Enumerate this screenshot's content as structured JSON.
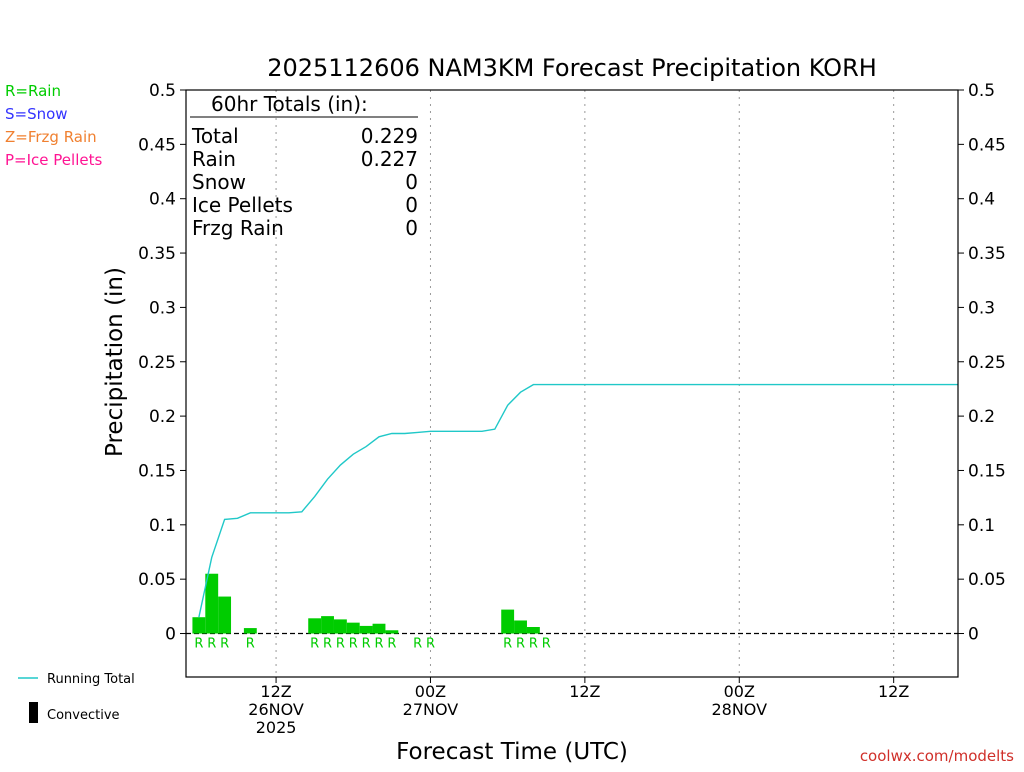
{
  "chart_data": {
    "type": "bar",
    "title": "2025112606 NAM3KM Forecast Precipitation KORH",
    "xlabel": "Forecast Time (UTC)",
    "ylabel": "Precipitation (in)",
    "ylim": [
      -0.04,
      0.5
    ],
    "x_unit": "forecast hour from 06Z 26NOV",
    "xlim": [
      -1,
      59
    ],
    "yticks": [
      {
        "v": 0.5,
        "label": "0.5"
      },
      {
        "v": 0.45,
        "label": "0.45"
      },
      {
        "v": 0.4,
        "label": "0.4"
      },
      {
        "v": 0.35,
        "label": "0.35"
      },
      {
        "v": 0.3,
        "label": "0.3"
      },
      {
        "v": 0.25,
        "label": "0.25"
      },
      {
        "v": 0.2,
        "label": "0.2"
      },
      {
        "v": 0.15,
        "label": "0.15"
      },
      {
        "v": 0.1,
        "label": "0.1"
      },
      {
        "v": 0.05,
        "label": "0.05"
      },
      {
        "v": 0,
        "label": "0"
      }
    ],
    "xticks": [
      {
        "h": 6,
        "lines": [
          "12Z",
          "26NOV",
          "2025"
        ]
      },
      {
        "h": 18,
        "lines": [
          "00Z",
          "27NOV"
        ]
      },
      {
        "h": 30,
        "lines": [
          "12Z"
        ]
      },
      {
        "h": 42,
        "lines": [
          "00Z",
          "28NOV"
        ]
      },
      {
        "h": 54,
        "lines": [
          "12Z"
        ]
      }
    ],
    "hourly_bars": [
      {
        "h": 0,
        "v": 0.015,
        "type": "R"
      },
      {
        "h": 1,
        "v": 0.055,
        "type": "R"
      },
      {
        "h": 2,
        "v": 0.034,
        "type": "R"
      },
      {
        "h": 4,
        "v": 0.005,
        "type": "R"
      },
      {
        "h": 9,
        "v": 0.014,
        "type": "R"
      },
      {
        "h": 10,
        "v": 0.016,
        "type": "R"
      },
      {
        "h": 11,
        "v": 0.013,
        "type": "R"
      },
      {
        "h": 12,
        "v": 0.01,
        "type": "R"
      },
      {
        "h": 13,
        "v": 0.007,
        "type": "R"
      },
      {
        "h": 14,
        "v": 0.009,
        "type": "R"
      },
      {
        "h": 15,
        "v": 0.003,
        "type": "R"
      },
      {
        "h": 17,
        "v": 0.0,
        "type": "R"
      },
      {
        "h": 18,
        "v": 0.0,
        "type": "R"
      },
      {
        "h": 24,
        "v": 0.022,
        "type": "R"
      },
      {
        "h": 25,
        "v": 0.012,
        "type": "R"
      },
      {
        "h": 26,
        "v": 0.006,
        "type": "R"
      },
      {
        "h": 27,
        "v": 0.0,
        "type": "R"
      }
    ],
    "running_total": [
      [
        0,
        0.015
      ],
      [
        1,
        0.07
      ],
      [
        2,
        0.105
      ],
      [
        3,
        0.106
      ],
      [
        4,
        0.111
      ],
      [
        5,
        0.111
      ],
      [
        6,
        0.111
      ],
      [
        7,
        0.111
      ],
      [
        8,
        0.112
      ],
      [
        9,
        0.126
      ],
      [
        10,
        0.142
      ],
      [
        11,
        0.155
      ],
      [
        12,
        0.165
      ],
      [
        13,
        0.172
      ],
      [
        14,
        0.181
      ],
      [
        15,
        0.184
      ],
      [
        16,
        0.184
      ],
      [
        17,
        0.185
      ],
      [
        18,
        0.186
      ],
      [
        19,
        0.186
      ],
      [
        20,
        0.186
      ],
      [
        21,
        0.186
      ],
      [
        22,
        0.186
      ],
      [
        23,
        0.188
      ],
      [
        24,
        0.21
      ],
      [
        25,
        0.222
      ],
      [
        26,
        0.229
      ],
      [
        27,
        0.229
      ],
      [
        59,
        0.229
      ]
    ],
    "colors": {
      "rain": "#00cc00",
      "snow": "#3333ff",
      "frzg_rain": "#f08030",
      "ice_pellets": "#ff1493",
      "running_total": "#20c8c8",
      "convective": "#000000",
      "credit": "#d0302a"
    },
    "totals_box": {
      "heading": "60hr Totals (in):",
      "rows": [
        {
          "label": "Total",
          "value": "0.229"
        },
        {
          "label": "Rain",
          "value": "0.227"
        },
        {
          "label": "Snow",
          "value": "0"
        },
        {
          "label": "Ice Pellets",
          "value": "0"
        },
        {
          "label": "Frzg Rain",
          "value": "0"
        }
      ]
    },
    "type_legend": [
      {
        "text": "R=Rain",
        "color": "#00cc00"
      },
      {
        "text": "S=Snow",
        "color": "#3333ff"
      },
      {
        "text": "Z=Frzg Rain",
        "color": "#f08030"
      },
      {
        "text": "P=Ice Pellets",
        "color": "#ff1493"
      }
    ],
    "line_legend": [
      {
        "kind": "line",
        "text": "Running Total"
      },
      {
        "kind": "bar",
        "text": "Convective"
      }
    ],
    "credit": "coolwx.com/modelts"
  }
}
